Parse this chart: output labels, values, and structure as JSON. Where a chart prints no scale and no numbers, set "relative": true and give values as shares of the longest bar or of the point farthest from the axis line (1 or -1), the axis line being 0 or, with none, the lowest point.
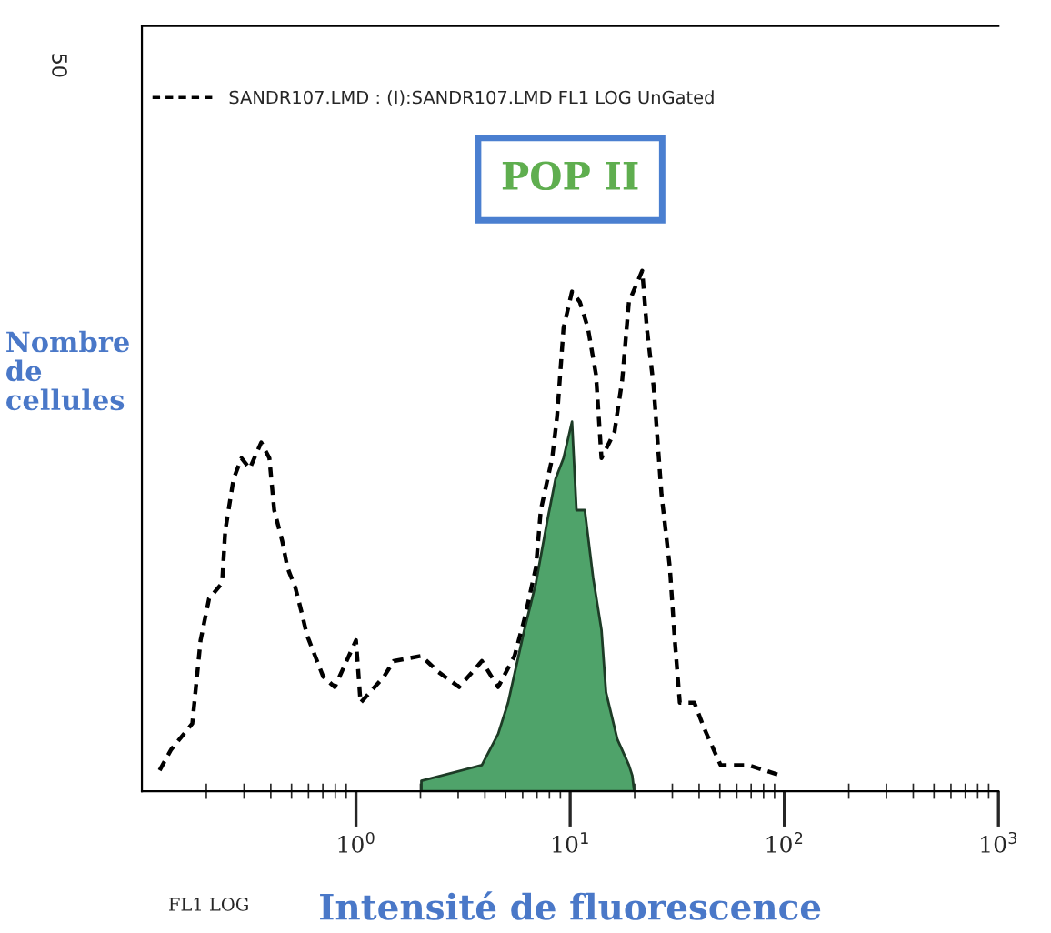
{
  "chart_data": {
    "type": "line",
    "relative": true,
    "xlabel": "Intensité de fluorescence",
    "ylabel": "Nombre\nde\ncellules",
    "annotations": [
      "POP II",
      "FL1 LOG",
      "50"
    ],
    "log": "x",
    "xlim": [
      0.1,
      1000
    ],
    "xticks": [
      {
        "value": 1,
        "label": "10$^{0}$"
      },
      {
        "value": 10,
        "label": "10$^{1}$"
      },
      {
        "value": 100,
        "label": "10$^{2}$"
      },
      {
        "value": 1000,
        "label": "10$^{3}$"
      }
    ],
    "grid": false,
    "legend": "top left",
    "marker": "none",
    "series": [
      {
        "name": "SANDR107.LMD : (I):SANDR107.LMD FL1 LOG UnGated",
        "type": "line",
        "line_style": "dashed",
        "color": "#000000",
        "x": [
          0.121,
          0.137,
          0.172,
          0.188,
          0.206,
          0.237,
          0.245,
          0.268,
          0.292,
          0.319,
          0.361,
          0.394,
          0.415,
          0.453,
          0.478,
          0.522,
          0.56,
          0.59,
          0.644,
          0.703,
          0.796,
          1.0,
          1.05,
          1.35,
          1.5,
          2.02,
          2.41,
          3.03,
          3.87,
          4.61,
          5.5,
          6.11,
          6.92,
          7.29,
          8.24,
          8.69,
          9.31,
          10.2,
          11.1,
          12.1,
          13.2,
          14.0,
          16.1,
          17.5,
          18.8,
          21.7,
          22.8,
          24.5,
          26.7,
          29.2,
          30.8,
          32.5,
          38.0,
          42.3,
          50.4,
          67.9,
          96.6
        ],
        "values": [
          0.04,
          0.08,
          0.13,
          0.29,
          0.37,
          0.4,
          0.5,
          0.6,
          0.64,
          0.62,
          0.67,
          0.64,
          0.54,
          0.48,
          0.43,
          0.39,
          0.34,
          0.3,
          0.26,
          0.22,
          0.2,
          0.29,
          0.17,
          0.22,
          0.25,
          0.26,
          0.23,
          0.2,
          0.25,
          0.2,
          0.26,
          0.33,
          0.43,
          0.54,
          0.64,
          0.72,
          0.89,
          0.96,
          0.94,
          0.89,
          0.8,
          0.64,
          0.69,
          0.79,
          0.94,
          1,
          0.89,
          0.78,
          0.57,
          0.43,
          0.29,
          0.17,
          0.17,
          0.12,
          0.05,
          0.05,
          0.03
        ]
      },
      {
        "type": "area",
        "color": "#4fa36a",
        "x": [
          2.02,
          3.87,
          4.61,
          5.13,
          6.11,
          6.92,
          7.82,
          8.54,
          9.31,
          10.2,
          10.7,
          11.7,
          12.8,
          14.0,
          14.7,
          16.6,
          18.8,
          19.5,
          19.9
        ],
        "values": [
          0.02,
          0.05,
          0.11,
          0.17,
          0.31,
          0.4,
          0.52,
          0.6,
          0.64,
          0.71,
          0.54,
          0.54,
          0.41,
          0.31,
          0.19,
          0.1,
          0.05,
          0.03,
          0
        ]
      }
    ]
  }
}
